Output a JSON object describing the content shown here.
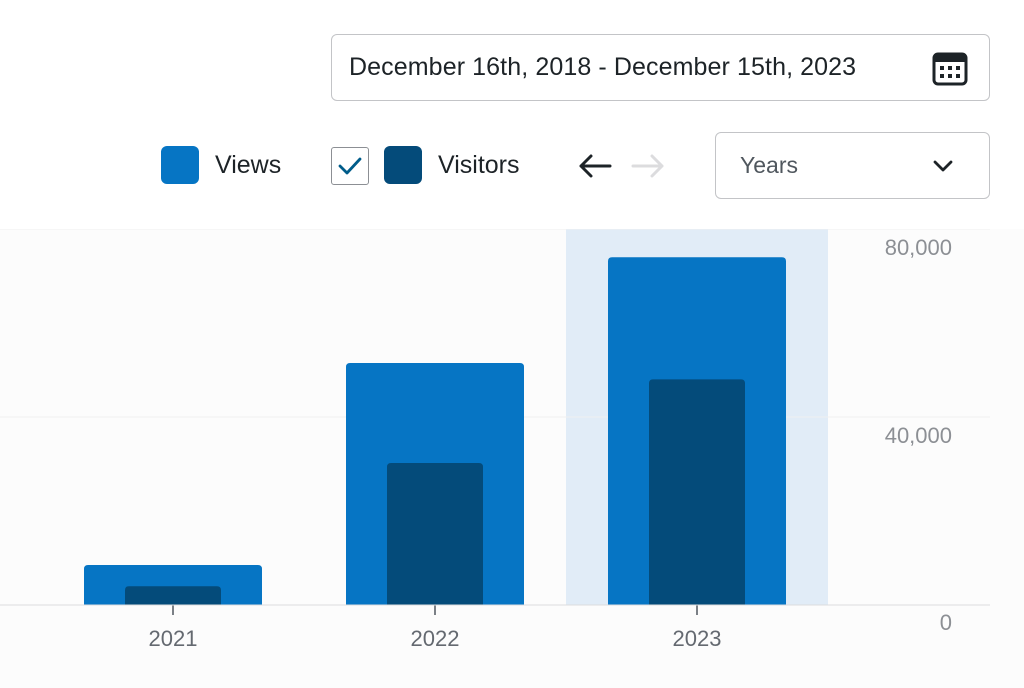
{
  "date_range": {
    "text": "December 16th, 2018 - December 15th, 2023",
    "icon": "calendar-icon"
  },
  "legend": {
    "views_label": "Views",
    "visitors_label": "Visitors",
    "visitors_checked": true
  },
  "navigation": {
    "prev_icon": "arrow-left-icon",
    "next_icon": "arrow-right-icon",
    "next_enabled": false
  },
  "period_select": {
    "selected": "Years",
    "icon": "chevron-down-icon"
  },
  "colors": {
    "views": "#0675c4",
    "visitors": "#044b7a",
    "highlight": "#e1ecf7",
    "checkmark": "#005c8a"
  },
  "chart_data": {
    "type": "bar",
    "categories": [
      "2021",
      "2022",
      "2023"
    ],
    "series": [
      {
        "name": "Views",
        "values": [
          8500,
          51500,
          74000
        ]
      },
      {
        "name": "Visitors",
        "values": [
          4000,
          30200,
          48000
        ]
      }
    ],
    "ylim": [
      0,
      80000
    ],
    "y_ticks": [
      0,
      40000,
      80000
    ],
    "y_tick_labels": [
      "0",
      "40,000",
      "80,000"
    ],
    "y_axis_side": "right",
    "highlighted_category": "2023",
    "grid": true
  }
}
